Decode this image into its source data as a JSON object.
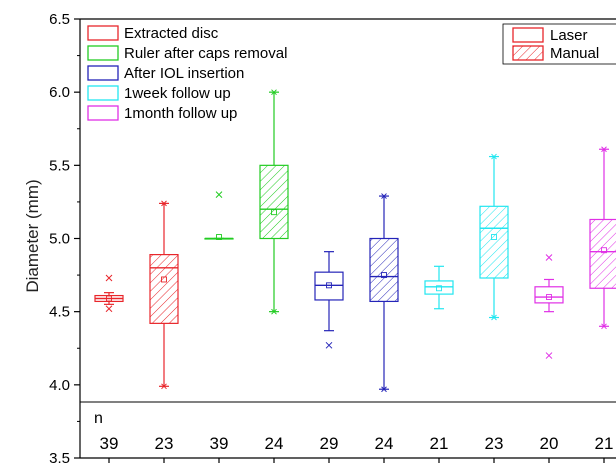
{
  "chart_data": {
    "type": "box",
    "ylabel": "Diameter (mm)",
    "ylim": [
      3.5,
      6.5
    ],
    "yticks": [
      "3.5",
      "4.0",
      "4.5",
      "5.0",
      "5.5",
      "6.0",
      "6.5"
    ],
    "n_label": "n",
    "legend_groups": [
      {
        "label": "Extracted disc",
        "color": "#e8262b"
      },
      {
        "label": "Ruler after caps removal",
        "color": "#22cc22"
      },
      {
        "label": "After IOL insertion",
        "color": "#2424b8"
      },
      {
        "label": "1week follow up",
        "color": "#22e6f0"
      },
      {
        "label": "1month follow up",
        "color": "#e030e6"
      }
    ],
    "legend_methods": [
      {
        "label": "Laser",
        "hatch": false
      },
      {
        "label": "Manual",
        "hatch": true
      }
    ],
    "boxes": [
      {
        "group": 0,
        "hatch": false,
        "n": "39",
        "q1": 4.57,
        "median": 4.59,
        "q3": 4.61,
        "mean": 4.59,
        "wlo": 4.55,
        "whi": 4.63,
        "outliers": [
          4.73,
          4.52
        ]
      },
      {
        "group": 0,
        "hatch": true,
        "n": "23",
        "q1": 4.42,
        "median": 4.8,
        "q3": 4.89,
        "mean": 4.72,
        "wlo": 3.99,
        "whi": 5.24,
        "outliers": []
      },
      {
        "group": 1,
        "hatch": false,
        "n": "39",
        "q1": 5.0,
        "median": 5.0,
        "q3": 5.0,
        "mean": 5.01,
        "wlo": 5.0,
        "whi": 5.0,
        "outliers": [
          5.3
        ]
      },
      {
        "group": 1,
        "hatch": true,
        "n": "24",
        "q1": 5.0,
        "median": 5.2,
        "q3": 5.5,
        "mean": 5.18,
        "wlo": 4.5,
        "whi": 6.0,
        "outliers": []
      },
      {
        "group": 2,
        "hatch": false,
        "n": "29",
        "q1": 4.58,
        "median": 4.68,
        "q3": 4.77,
        "mean": 4.68,
        "wlo": 4.37,
        "whi": 4.91,
        "outliers": [
          4.27
        ]
      },
      {
        "group": 2,
        "hatch": true,
        "n": "24",
        "q1": 4.57,
        "median": 4.74,
        "q3": 5.0,
        "mean": 4.75,
        "wlo": 3.97,
        "whi": 5.29,
        "outliers": []
      },
      {
        "group": 3,
        "hatch": false,
        "n": "21",
        "q1": 4.62,
        "median": 4.67,
        "q3": 4.71,
        "mean": 4.66,
        "wlo": 4.52,
        "whi": 4.81,
        "outliers": []
      },
      {
        "group": 3,
        "hatch": true,
        "n": "23",
        "q1": 4.73,
        "median": 5.07,
        "q3": 5.22,
        "mean": 5.01,
        "wlo": 4.46,
        "whi": 5.56,
        "outliers": []
      },
      {
        "group": 4,
        "hatch": false,
        "n": "20",
        "q1": 4.56,
        "median": 4.6,
        "q3": 4.67,
        "mean": 4.6,
        "wlo": 4.5,
        "whi": 4.72,
        "outliers": [
          4.87,
          4.2
        ]
      },
      {
        "group": 4,
        "hatch": true,
        "n": "21",
        "q1": 4.66,
        "median": 4.91,
        "q3": 5.13,
        "mean": 4.92,
        "wlo": 4.4,
        "whi": 5.61,
        "outliers": []
      }
    ]
  }
}
